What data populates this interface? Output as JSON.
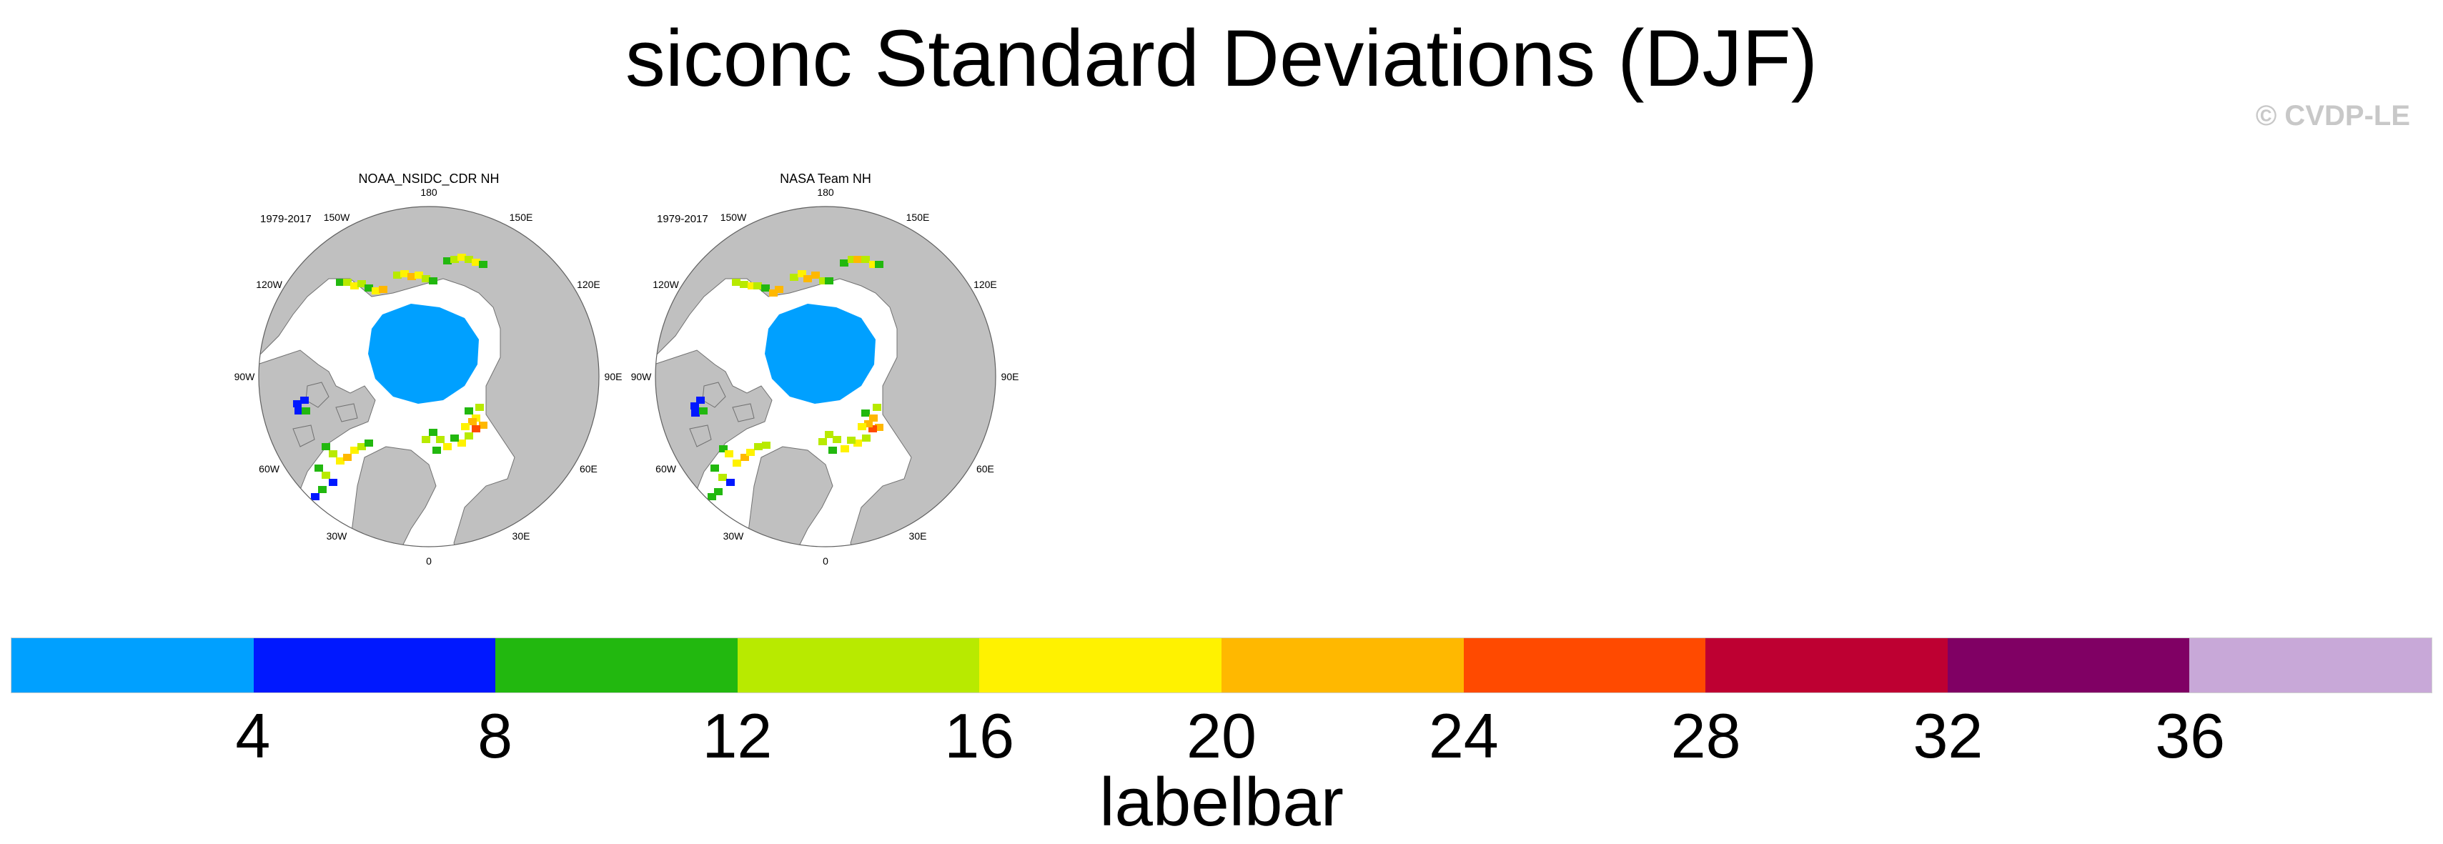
{
  "title": "siconc Standard Deviations (DJF)",
  "credit": "© CVDP-LE",
  "panels": [
    {
      "title": "NOAA_NSIDC_CDR NH",
      "years": "1979-2017",
      "lon_labels": [
        "180",
        "150E",
        "120E",
        "90E",
        "60E",
        "30E",
        "0",
        "30W",
        "60W",
        "90W",
        "120W",
        "150W"
      ]
    },
    {
      "title": "NASA Team NH",
      "years": "1979-2017",
      "lon_labels": [
        "180",
        "150E",
        "120E",
        "90E",
        "60E",
        "30E",
        "0",
        "30W",
        "60W",
        "90W",
        "120W",
        "150W"
      ]
    }
  ],
  "labelbar": {
    "title": "labelbar",
    "ticks": [
      "4",
      "8",
      "12",
      "16",
      "20",
      "24",
      "28",
      "32",
      "36"
    ],
    "colors": [
      "#00a0ff",
      "#0018ff",
      "#22b80f",
      "#b8ea00",
      "#fff200",
      "#ffb800",
      "#ff4a00",
      "#be0032",
      "#800064",
      "#c8a8d8"
    ]
  },
  "colors": {
    "land": "#c0c0c0",
    "coast": "#707070",
    "ice_low": "#00a0ff"
  }
}
